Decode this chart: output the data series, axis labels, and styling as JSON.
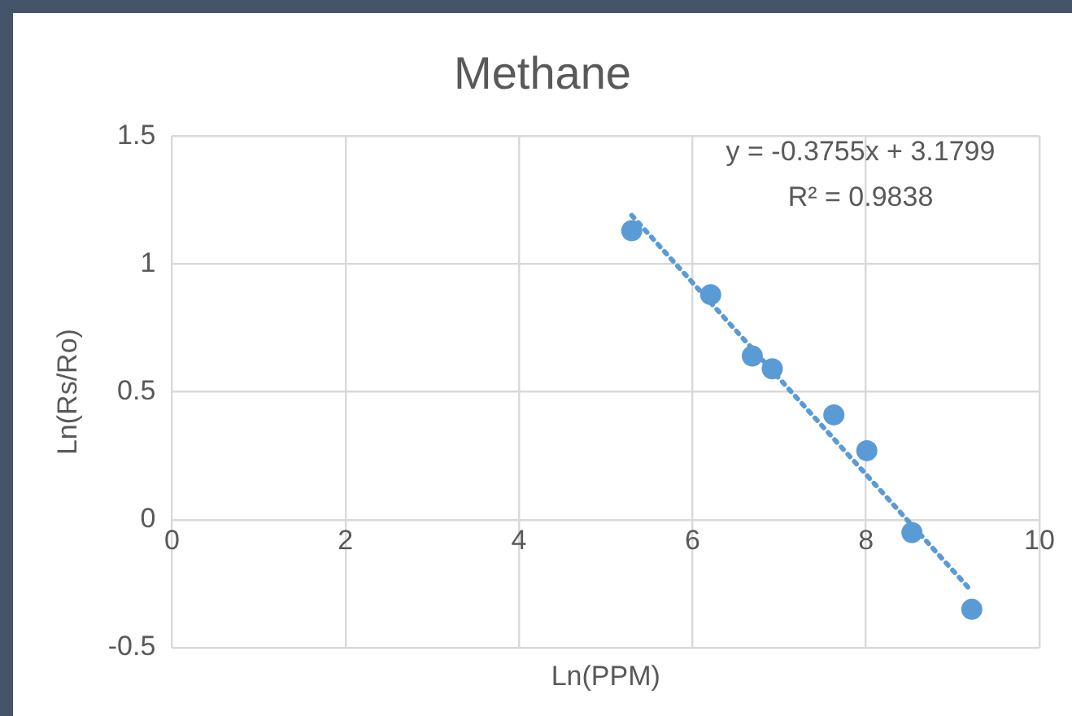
{
  "chart_data": {
    "type": "scatter",
    "title": "Methane",
    "xlabel": "Ln(PPM)",
    "ylabel": "Ln(Rs/Ro)",
    "xlim": [
      0,
      10
    ],
    "xticks": [
      0,
      2,
      4,
      6,
      8,
      10
    ],
    "ylim": [
      -0.5,
      1.5
    ],
    "yticks": [
      -0.5,
      0,
      0.5,
      1,
      1.5
    ],
    "grid": true,
    "legend": false,
    "marker": "circle",
    "annotations": [
      "y = -0.3755x + 3.1799",
      "R² = 0.9838"
    ],
    "series": [
      {
        "type": "scatter",
        "color": "#5b9bd5",
        "x": [
          5.3,
          6.21,
          6.69,
          6.92,
          7.63,
          8.01,
          8.53,
          9.22
        ],
        "values": [
          1.13,
          0.88,
          0.64,
          0.59,
          0.41,
          0.27,
          -0.05,
          -0.35
        ]
      },
      {
        "type": "line",
        "color": "#5b9bd5",
        "line_style": "dotted",
        "marker": "none",
        "x": [
          5.3,
          9.22
        ],
        "values": [
          1.19,
          -0.28
        ]
      }
    ]
  }
}
